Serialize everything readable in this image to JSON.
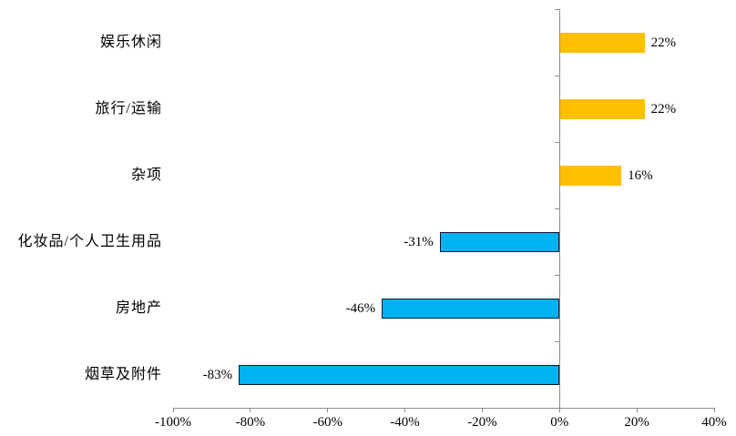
{
  "chart_data": {
    "type": "bar",
    "orientation": "horizontal",
    "title": "",
    "categories": [
      "娱乐休闲",
      "旅行/运输",
      "杂项",
      "化妆品/个人卫生用品",
      "房地产",
      "烟草及附件"
    ],
    "values": [
      22,
      22,
      16,
      -31,
      -46,
      -83
    ],
    "value_labels": [
      "22%",
      "22%",
      "16%",
      "-31%",
      "-46%",
      "-83%"
    ],
    "xlim": [
      -100,
      40
    ],
    "x_tick_step": 20,
    "x_tick_labels": [
      "-100%",
      "-80%",
      "-60%",
      "-40%",
      "-20%",
      "0%",
      "20%",
      "40%"
    ],
    "grid": false,
    "legend": "none",
    "positive_color": "#FFBE00",
    "negative_color": "#00B2F0",
    "negative_bar_border_color": "#0A1A2A",
    "axis_color": "#8C8C8C",
    "text_color": "#000000",
    "background_color": "#FFFFFF"
  }
}
